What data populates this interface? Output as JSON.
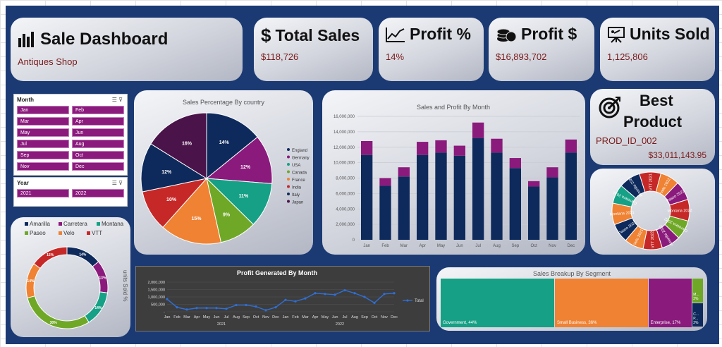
{
  "dashboard": {
    "title": "Sale Dashboard",
    "subtitle": "Antiques Shop"
  },
  "kpis": {
    "total_sales": {
      "label": "Total Sales",
      "value": "$118,726",
      "icon": "dollar-icon"
    },
    "profit_pct": {
      "label": "Profit %",
      "value": "14%",
      "icon": "line-trend-icon"
    },
    "profit_usd": {
      "label": "Profit $",
      "value": "$16,893,702",
      "icon": "coins-icon"
    },
    "units_sold": {
      "label": "Units Sold",
      "value": "1,125,806",
      "icon": "presentation-icon"
    }
  },
  "best_product": {
    "label_line1": "Best",
    "label_line2": "Product",
    "product_id": "PROD_ID_002",
    "value": "$33,011,143.95",
    "icon": "target-icon"
  },
  "slicers": {
    "month": {
      "header": "Month",
      "items": [
        "Jan",
        "Feb",
        "Mar",
        "Apr",
        "May",
        "Jun",
        "Jul",
        "Aug",
        "Sep",
        "Oct",
        "Nov",
        "Dec"
      ]
    },
    "year": {
      "header": "Year",
      "items": [
        "2021",
        "2022"
      ]
    }
  },
  "colors": {
    "navy": "#0e2a5c",
    "magenta": "#8b1a7d",
    "teal": "#16a085",
    "orange": "#ef8233",
    "green": "#6fa827",
    "red": "#c62828",
    "purple": "#4a1349",
    "board": "#1b3a73"
  },
  "chart_data": [
    {
      "id": "country-pie",
      "type": "pie",
      "title": "Sales Percentage By country",
      "labels": [
        "England",
        "Germany",
        "USA",
        "Canada",
        "France",
        "India",
        "Italy",
        "Japan"
      ],
      "values": [
        14,
        12,
        11,
        9,
        15,
        10,
        12,
        16
      ],
      "data_labels": [
        "14%",
        "12%",
        "11%",
        "9%",
        "15%",
        "10%",
        "12%",
        "16%"
      ],
      "colors": [
        "#0e2a5c",
        "#8b1a7d",
        "#16a085",
        "#6fa827",
        "#ef8233",
        "#c62828",
        "#0e2a5c",
        "#4a1349"
      ],
      "legend": "right"
    },
    {
      "id": "sales-profit-month",
      "type": "bar",
      "stacked": true,
      "title": "Sales and Profit By Month",
      "categories": [
        "Jan",
        "Feb",
        "Mar",
        "Apr",
        "May",
        "Jun",
        "Jul",
        "Aug",
        "Sep",
        "Oct",
        "Nov",
        "Dec"
      ],
      "series": [
        {
          "values": [
            11000000,
            7000000,
            8200000,
            11000000,
            11300000,
            10900000,
            13200000,
            11300000,
            9300000,
            6900000,
            8100000,
            11300000
          ],
          "color": "#0e2a5c"
        },
        {
          "values": [
            1800000,
            1000000,
            1200000,
            1700000,
            1600000,
            1300000,
            2000000,
            1800000,
            1300000,
            700000,
            1300000,
            1700000
          ],
          "color": "#8b1a7d"
        }
      ],
      "y_ticks": [
        "0",
        "2,000,000",
        "4,000,000",
        "6,000,000",
        "8,000,000",
        "10,000,000",
        "12,000,000",
        "14,000,000",
        "16,000,000"
      ],
      "ylim": [
        0,
        16000000
      ],
      "grid": true
    },
    {
      "id": "profit-month-line",
      "type": "line",
      "title": "Profit Generated By Month",
      "x_months": [
        "Jan",
        "Feb",
        "Mar",
        "Apr",
        "May",
        "Jun",
        "Jul",
        "Aug",
        "Sep",
        "Oct",
        "Nov",
        "Dec",
        "Jan",
        "Feb",
        "Mar",
        "Apr",
        "May",
        "Jun",
        "Jul",
        "Aug",
        "Sep",
        "Oct",
        "Nov",
        "Dec"
      ],
      "x_years": [
        "2021",
        "2022"
      ],
      "series": [
        {
          "name": "Total",
          "values": [
            850000,
            300000,
            150000,
            250000,
            250000,
            250000,
            200000,
            450000,
            450000,
            350000,
            100000,
            300000,
            800000,
            700000,
            900000,
            1250000,
            1200000,
            1150000,
            1450000,
            1250000,
            1000000,
            600000,
            1200000,
            1250000
          ]
        }
      ],
      "y_ticks": [
        "-",
        "500,000",
        "1,000,000",
        "1,500,000",
        "2,000,000"
      ],
      "ylim": [
        0,
        2000000
      ],
      "legend": "right"
    },
    {
      "id": "units-donut",
      "type": "pie",
      "donut": true,
      "ylabel": "units Sold %",
      "labels": [
        "Amarilla",
        "Carretera",
        "Montana",
        "Paseo",
        "Velo",
        "VTT"
      ],
      "values": [
        14,
        13,
        14,
        30,
        14,
        15
      ],
      "data_labels": [
        "14%",
        "13%",
        "14%",
        "30%",
        "14%",
        "15%"
      ],
      "colors": [
        "#0e2a5c",
        "#8b1a7d",
        "#16a085",
        "#6fa827",
        "#ef8233",
        "#c62828"
      ],
      "legend": "top"
    },
    {
      "id": "product-year-ring",
      "type": "pie",
      "donut": true,
      "labels": [
        "VTT 2021",
        "Velo 2022",
        "Paseo 2022",
        "Montana 2022",
        "Carretera 2022",
        "Amarilla 2022",
        "VTT 2022",
        "Velo 2021",
        "Paseo 2021",
        "Montana 2021",
        "Carretera 2021",
        "Amarilla 2021"
      ],
      "values": [
        9,
        8,
        8,
        9,
        8,
        8,
        8,
        8,
        8,
        9,
        8,
        9
      ],
      "colors": [
        "#c62828",
        "#ef8233",
        "#8b1a7d",
        "#c62828",
        "#6fa827",
        "#8b1a7d",
        "#c62828",
        "#ef8233",
        "#0e2a5c",
        "#ef8233",
        "#16a085",
        "#0e2a5c"
      ]
    },
    {
      "id": "segment-treemap",
      "type": "table",
      "title": "Sales Breakup By Segment",
      "items": [
        {
          "label": "Government, 44%",
          "value": 44,
          "color": "#16a085"
        },
        {
          "label": "Small Business, 36%",
          "value": 36,
          "color": "#ef8233"
        },
        {
          "label": "Enterprise, 17%",
          "value": 17,
          "color": "#8b1a7d"
        },
        {
          "label": "M... 2%",
          "value": 2,
          "color": "#6fa827"
        },
        {
          "label": "C... P... 2%",
          "value": 2,
          "color": "#0e2a5c"
        }
      ]
    }
  ]
}
